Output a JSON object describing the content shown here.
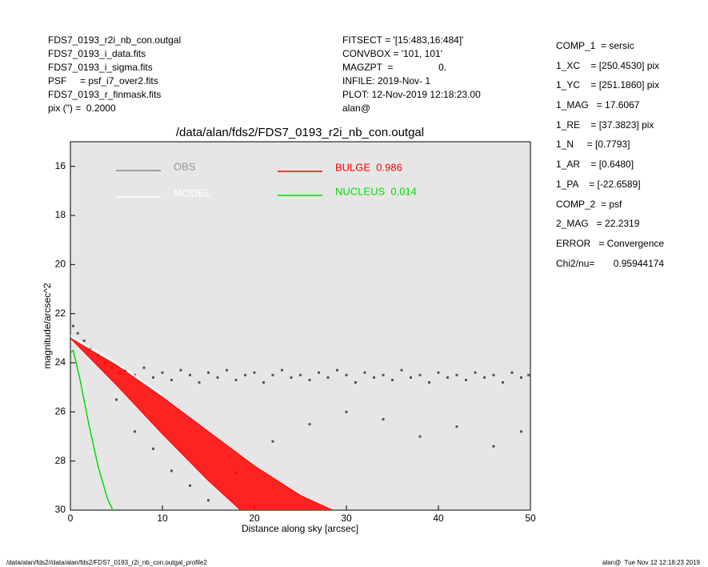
{
  "header": {
    "left": [
      "FDS7_0193_r2i_nb_con.outgal",
      "FDS7_0193_i_data.fits",
      "FDS7_0193_i_sigma.fits",
      "PSF     = psf_i7_over2.fits",
      "FDS7_0193_r_finmask.fits",
      "pix (\") =  0.2000"
    ],
    "middle": [
      "FITSECT = '[15:483,16:484]'",
      "CONVBOX = '101, 101'",
      "MAGZPT  =                 0.",
      "INFILE: 2019-Nov- 1",
      "PLOT: 12-Nov-2019 12:18:23.00",
      "alan@"
    ],
    "right": [
      "COMP_1  = sersic",
      "1_XC    = [250.4530] pix",
      "1_YC    = [251.1860] pix",
      "1_MAG   = 17.6067",
      "1_RE    = [37.3823] pix",
      "1_N     = [0.7793]",
      "1_AR    = [0.6480]",
      "1_PA    = [-22.6589]",
      "COMP_2  = psf",
      "2_MAG   = 22.2319",
      "ERROR   = Convergence",
      "Chi2/nu=       0.95944174"
    ]
  },
  "footer": {
    "left": "/data/alan/fds2//data/alan/fds2/FDS7_0193_r2i_nb_con.outgal_profile2",
    "right": "alan@  Tue Nov 12 12:18:23 2019"
  },
  "chart_data": {
    "type": "scatter",
    "title": "/data/alan/fds2/FDS7_0193_r2i_nb_con.outgal",
    "xlabel": "Distance along sky [arcsec]",
    "ylabel": "magnitude/arcsec^2",
    "xlim": [
      0,
      50
    ],
    "xticks": [
      0,
      10,
      20,
      30,
      40,
      50
    ],
    "ylim": [
      30,
      15
    ],
    "yticks": [
      16,
      18,
      20,
      22,
      24,
      26,
      28,
      30
    ],
    "background": "#e6e6e6",
    "series": [
      {
        "name": "OBS",
        "color": "#555555",
        "kind": "points",
        "x": [
          0.3,
          0.8,
          1.5,
          2.2,
          3,
          3.8,
          4.5,
          5.3,
          6,
          7,
          8,
          9,
          10,
          11,
          12,
          13,
          14,
          15,
          16,
          17,
          18,
          19,
          20,
          21,
          22,
          23,
          24,
          25,
          26,
          27,
          28,
          29,
          30,
          31,
          32,
          33,
          34,
          35,
          36,
          37,
          38,
          39,
          40,
          41,
          42,
          43,
          44,
          45,
          46,
          47,
          48,
          49,
          49.8,
          5,
          7,
          9,
          11,
          13,
          15,
          18,
          22,
          26,
          30,
          34,
          38,
          42,
          46,
          49
        ],
        "values": [
          22.5,
          22.8,
          23.1,
          23.4,
          23.7,
          24,
          24.2,
          24.4,
          24.3,
          24.5,
          24.2,
          24.6,
          24.4,
          24.7,
          24.3,
          24.5,
          24.8,
          24.4,
          24.6,
          24.3,
          24.7,
          24.5,
          24.4,
          24.8,
          24.5,
          24.3,
          24.6,
          24.5,
          24.7,
          24.4,
          24.6,
          24.3,
          24.5,
          24.8,
          24.4,
          24.6,
          24.5,
          24.7,
          24.3,
          24.6,
          24.5,
          24.8,
          24.4,
          24.6,
          24.5,
          24.7,
          24.4,
          24.6,
          24.5,
          24.8,
          24.4,
          24.6,
          24.5,
          25.5,
          26.8,
          27.5,
          28.4,
          29,
          29.6,
          28.5,
          27.2,
          26.5,
          26,
          26.3,
          27,
          26.6,
          27.4,
          26.8
        ]
      },
      {
        "name": "MODEL",
        "color": "#ffffff",
        "kind": "line",
        "x": [
          0,
          5,
          10
        ],
        "values": [
          22.9,
          24,
          25.3
        ]
      },
      {
        "name": "BULGE  0.986",
        "color": "#ff0000",
        "kind": "band",
        "x": [
          0,
          5,
          10,
          15,
          18.5
        ],
        "values": [
          23,
          24.9,
          26.9,
          28.8,
          30
        ],
        "x2": [
          0,
          5,
          10,
          15,
          20,
          25,
          28.5
        ],
        "values2": [
          23,
          24.1,
          25.4,
          26.8,
          28.2,
          29.4,
          30
        ]
      },
      {
        "name": "NUCLEUS  0.014",
        "color": "#00dd00",
        "kind": "line",
        "x": [
          0,
          0.3,
          1,
          2,
          3,
          4,
          4.6
        ],
        "values": [
          23.6,
          23.5,
          24.6,
          26.5,
          28.2,
          29.5,
          30
        ]
      }
    ]
  }
}
